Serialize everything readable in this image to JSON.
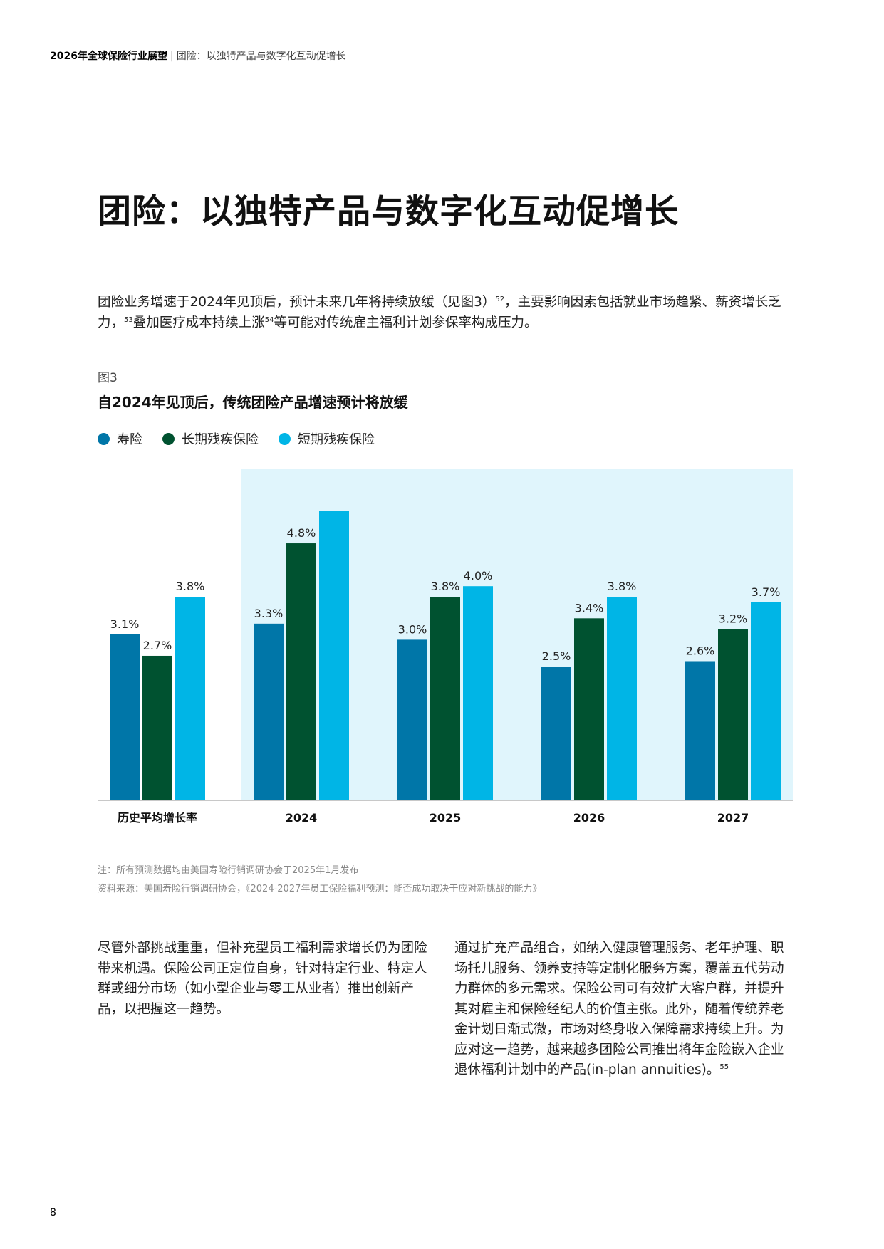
{
  "header": {
    "report": "2026年全球保险行业展望",
    "separator": "|",
    "section": "团险：以独特产品与数字化互动促增长"
  },
  "title": "团险：以独特产品与数字化互动促增长",
  "intro": {
    "line1_a": "团险业务增速于2024年见顶后，预计未来几年将持续放缓（见图3）",
    "ref52": "52",
    "line1_b": "，主要影响因素包括就业市场趋紧、薪资增长乏力，",
    "ref53": "53",
    "line2_a": "叠加医疗成本持续上涨",
    "ref54": "54",
    "line2_b": "等可能对传统雇主福利计划参保率构成压力。"
  },
  "figure": {
    "label": "图3",
    "title": "自2024年见顶后，传统团险产品增速预计将放缓"
  },
  "chart_data": {
    "type": "bar",
    "title": "自2024年见顶后，传统团险产品增速预计将放缓",
    "categories": [
      "历史平均增长率",
      "2024",
      "2025",
      "2026",
      "2027"
    ],
    "series": [
      {
        "name": "寿险",
        "color": "#0076A8",
        "values": [
          3.1,
          3.3,
          3.0,
          2.5,
          2.6
        ],
        "labels": [
          "3.1%",
          "3.3%",
          "3.0%",
          "2.5%",
          "2.6%"
        ]
      },
      {
        "name": "长期残疾保险",
        "color": "#005230",
        "values": [
          2.7,
          4.8,
          3.8,
          3.4,
          3.2
        ],
        "labels": [
          "2.7%",
          "4.8%",
          "3.8%",
          "3.4%",
          "3.2%"
        ]
      },
      {
        "name": "短期残疾保险",
        "color": "#00B5E6",
        "values": [
          3.8,
          5.4,
          4.0,
          3.8,
          3.7
        ],
        "labels": [
          "3.8%",
          "",
          "4.0%",
          "3.8%",
          "3.7%"
        ]
      }
    ],
    "forecast_shading": {
      "from": "2024",
      "to": "2027",
      "color": "#E0F5FC"
    },
    "ylim": [
      0,
      6
    ],
    "legend": "top-left",
    "grid": false
  },
  "notes": {
    "note": "注：所有预测数据均由美国寿险行销调研协会于2025年1月发布",
    "source": "资料来源：美国寿险行销调研协会，《2024-2027年员工保险福利预测：能否成功取决于应对新挑战的能力》"
  },
  "body": {
    "left": "尽管外部挑战重重，但补充型员工福利需求增长仍为团险带来机遇。保险公司正定位自身，针对特定行业、特定人群或细分市场（如小型企业与零工从业者）推出创新产品，以把握这一趋势。",
    "right": "通过扩充产品组合，如纳入健康管理服务、老年护理、职场托儿服务、领养支持等定制化服务方案，覆盖五代劳动力群体的多元需求。保险公司可有效扩大客户群，并提升其对雇主和保险经纪人的价值主张。此外，随着传统养老金计划日渐式微，市场对终身收入保障需求持续上升。为应对这一趋势，越来越多团险公司推出将年金险嵌入企业退休福利计划中的产品(in-plan annuities)。",
    "ref55": "55"
  },
  "page_number": "8"
}
